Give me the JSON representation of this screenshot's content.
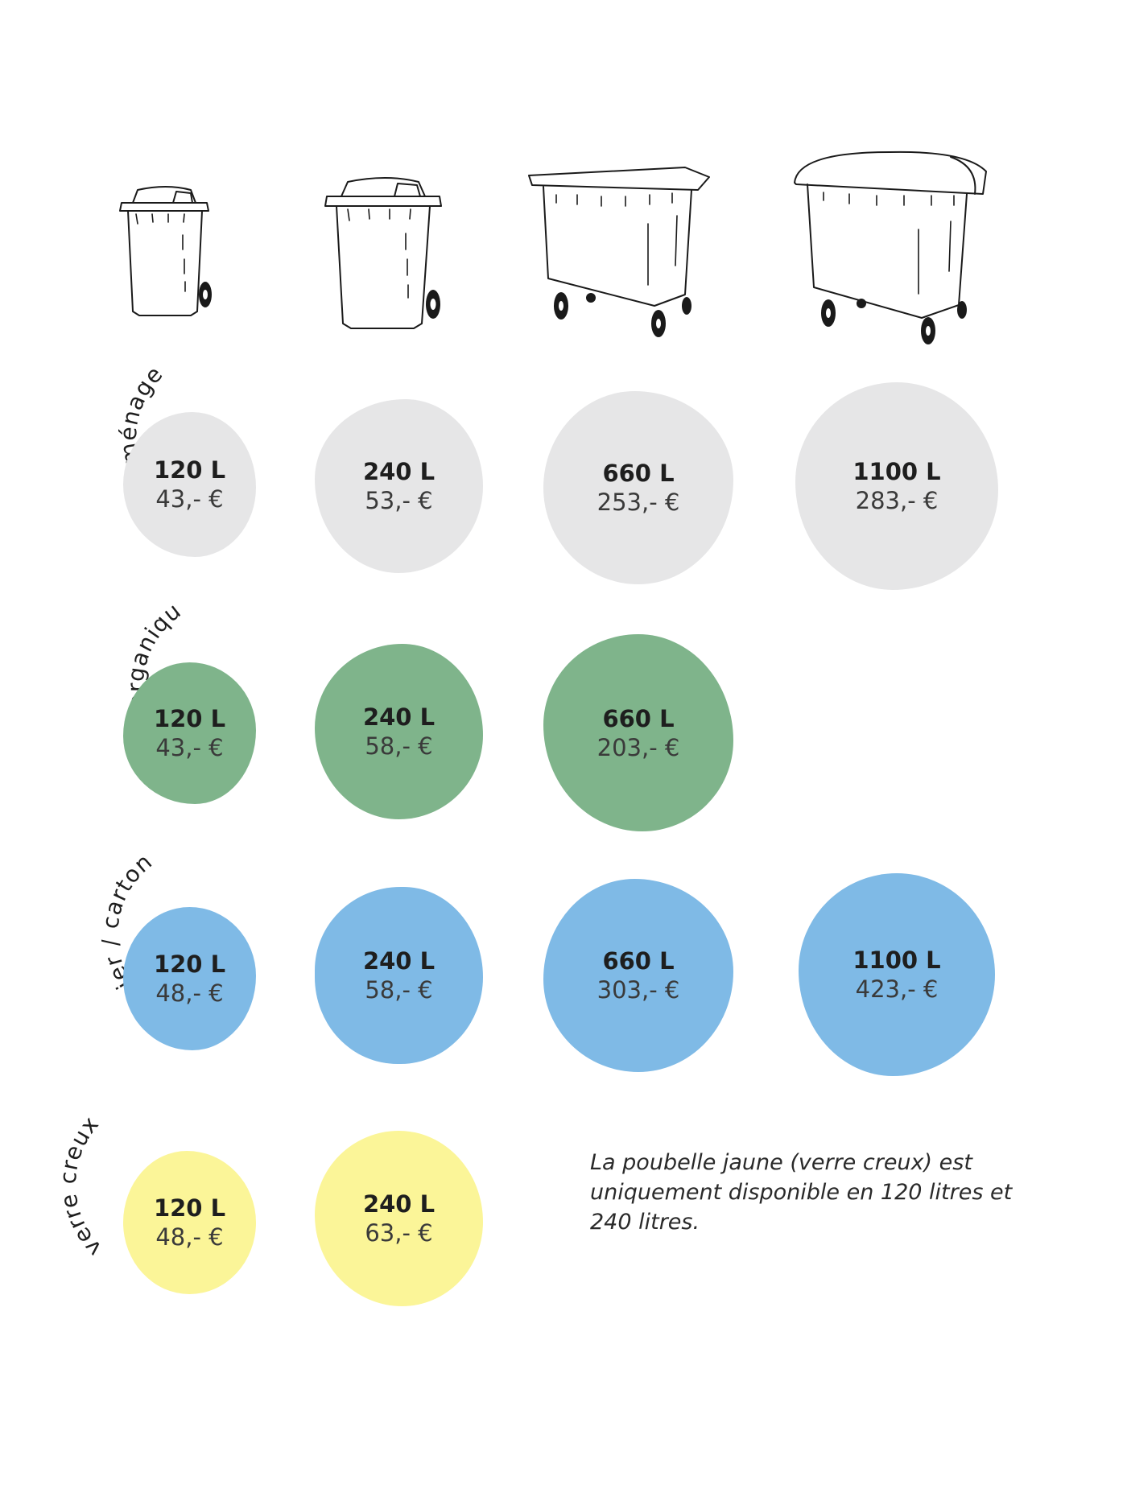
{
  "bins": [
    {
      "icon": "wheelie-bin-120-icon"
    },
    {
      "icon": "wheelie-bin-240-icon"
    },
    {
      "icon": "container-660-icon"
    },
    {
      "icon": "container-1100-icon"
    }
  ],
  "rows": [
    {
      "category": "déchets ménagers",
      "color": "#e6e6e7",
      "items": [
        {
          "volume": "120 L",
          "price": "43,- €"
        },
        {
          "volume": "240 L",
          "price": "53,- €"
        },
        {
          "volume": "660 L",
          "price": "253,- €"
        },
        {
          "volume": "1100 L",
          "price": "283,- €"
        }
      ]
    },
    {
      "category": "déchets organiques",
      "color": "#7fb48b",
      "items": [
        {
          "volume": "120 L",
          "price": "43,- €"
        },
        {
          "volume": "240 L",
          "price": "58,- €"
        },
        {
          "volume": "660 L",
          "price": "203,- €"
        }
      ]
    },
    {
      "category": "papier / carton",
      "color": "#7fbae6",
      "items": [
        {
          "volume": "120 L",
          "price": "48,- €"
        },
        {
          "volume": "240 L",
          "price": "58,- €"
        },
        {
          "volume": "660 L",
          "price": "303,- €"
        },
        {
          "volume": "1100 L",
          "price": "423,- €"
        }
      ]
    },
    {
      "category": "verre creux",
      "color": "#fbf598",
      "items": [
        {
          "volume": "120 L",
          "price": "48,- €"
        },
        {
          "volume": "240 L",
          "price": "63,- €"
        }
      ]
    }
  ],
  "note": "La poubelle jaune (verre creux) est uniquement disponible en 120 litres et 240 litres."
}
